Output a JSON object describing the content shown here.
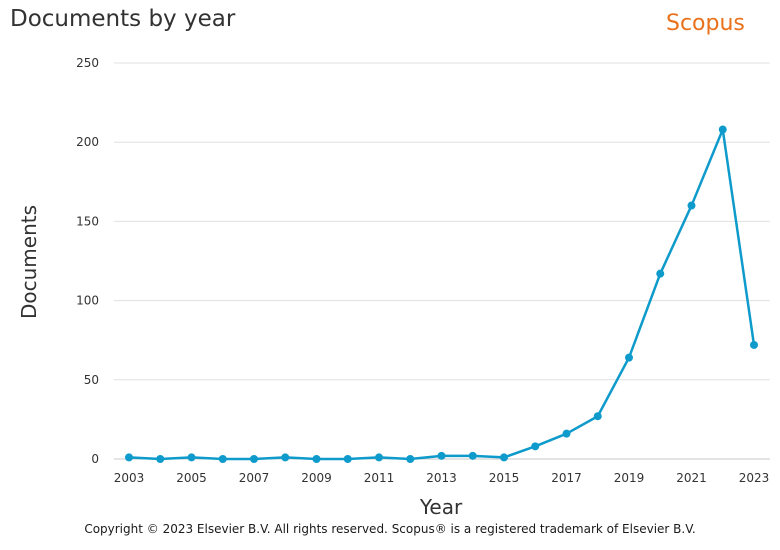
{
  "header": {
    "title": "Documents by year",
    "brand": "Scopus"
  },
  "footer": {
    "copyright": "Copyright © 2023 Elsevier B.V. All rights reserved. Scopus® is a registered trademark of Elsevier B.V."
  },
  "colors": {
    "line": "#0e9bcb",
    "grid": "#e0e0e0",
    "brand": "#e9711c"
  },
  "chart_data": {
    "type": "line",
    "title": "Documents by year",
    "xlabel": "Year",
    "ylabel": "Documents",
    "x": [
      2003,
      2004,
      2005,
      2006,
      2007,
      2008,
      2009,
      2010,
      2011,
      2012,
      2013,
      2014,
      2015,
      2016,
      2017,
      2018,
      2019,
      2020,
      2021,
      2022,
      2023
    ],
    "series": [
      {
        "values": [
          1,
          0,
          1,
          0,
          0,
          1,
          0,
          0,
          1,
          0,
          2,
          2,
          1,
          8,
          16,
          27,
          64,
          117,
          160,
          208,
          72
        ]
      }
    ],
    "x_ticks": [
      2003,
      2005,
      2007,
      2009,
      2011,
      2013,
      2015,
      2017,
      2019,
      2021,
      2023
    ],
    "y_ticks": [
      0,
      50,
      100,
      150,
      200,
      250
    ],
    "ylim": [
      0,
      250
    ],
    "xlim": [
      2003,
      2023
    ],
    "grid": true,
    "legend": false
  }
}
